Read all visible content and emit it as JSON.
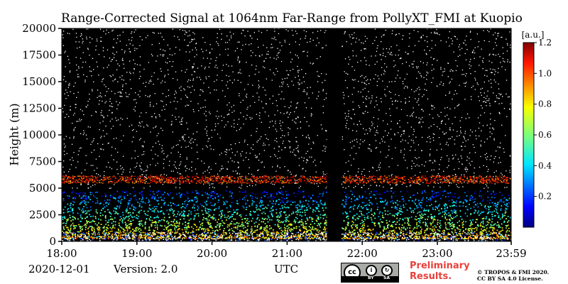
{
  "chart_data": {
    "type": "heatmap",
    "title": "Range-Corrected Signal at 1064nm Far-Range from PollyXT_FMI at Kuopio",
    "xlabel": "UTC",
    "ylabel": "Height (m)",
    "x_tick_labels": [
      "18:00",
      "19:00",
      "20:00",
      "21:00",
      "22:00",
      "23:00",
      "23:59"
    ],
    "x_range_hours": [
      18.0,
      23.983
    ],
    "y_tick_values": [
      0,
      2500,
      5000,
      7500,
      10000,
      12500,
      15000,
      17500,
      20000
    ],
    "y_tick_labels": [
      "0",
      "2500",
      "5000",
      "7500",
      "10000",
      "12500",
      "15000",
      "17500",
      "20000"
    ],
    "ylim": [
      0,
      20000
    ],
    "colorbar": {
      "label": "[a.u.]",
      "range": [
        0.0,
        1.2
      ],
      "tick_values": [
        0.2,
        0.4,
        0.6,
        0.8,
        1.0,
        1.2
      ],
      "tick_labels": [
        "0.2",
        "0.4",
        "0.6",
        "0.8",
        "1.0",
        "1.2"
      ],
      "colormap": "jet"
    },
    "features": {
      "noise_background_color": "#000000",
      "noise_speckle_color": "#ffffff",
      "high_signal_layer_height_m": [
        5500,
        6200
      ],
      "aerosol_layer_top_m": 4500,
      "no_data_interval_hours": [
        21.53,
        21.72
      ]
    }
  },
  "footer": {
    "date": "2020-12-01",
    "version": "Version: 2.0",
    "xaxis_unit": "UTC",
    "preliminary": [
      "Preliminary",
      "Results."
    ],
    "copyright": [
      "© TROPOS & FMI 2020.",
      "CC BY SA 4.0 License."
    ],
    "license_badge": {
      "main": "cc",
      "by": "BY",
      "sa": "SA"
    }
  },
  "colors": {
    "preliminary_red": "#e8413c",
    "badge_grey": "#a8aba6"
  }
}
